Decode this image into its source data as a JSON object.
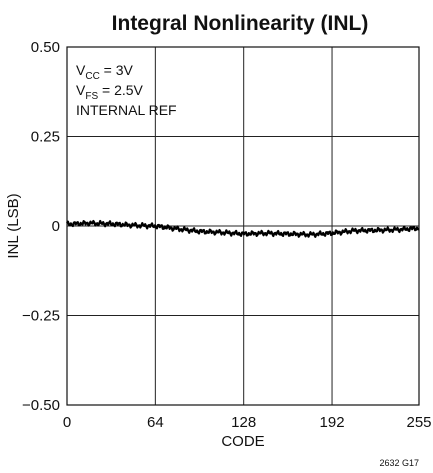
{
  "chart_data": {
    "type": "line",
    "title": "Integral Nonlinearity (INL)",
    "xlabel": "CODE",
    "ylabel": "INL (LSB)",
    "xlim": [
      0,
      255
    ],
    "ylim": [
      -0.5,
      0.5
    ],
    "x_ticks": [
      0,
      64,
      128,
      192,
      255
    ],
    "y_ticks": [
      0.5,
      0.25,
      0,
      -0.25,
      -0.5
    ],
    "x_tick_labels": [
      "0",
      "64",
      "128",
      "192",
      "255"
    ],
    "y_tick_labels": [
      "0.50",
      "0.25",
      "0",
      "−0.25",
      "−0.50"
    ],
    "grid": true,
    "annotations": {
      "line1": {
        "prefix": "V",
        "sub": "CC",
        "suffix": " = 3V"
      },
      "line2": {
        "prefix": "V",
        "sub": "FS",
        "suffix": " = 2.5V"
      },
      "line3": "INTERNAL REF"
    },
    "figure_id": "2632 G17",
    "series": [
      {
        "x": [
          0,
          16,
          32,
          48,
          64,
          80,
          96,
          112,
          128,
          144,
          160,
          176,
          192,
          208,
          224,
          240,
          255
        ],
        "y": [
          0.005,
          0.008,
          0.006,
          0.002,
          0.0,
          -0.008,
          -0.015,
          -0.018,
          -0.022,
          -0.02,
          -0.022,
          -0.024,
          -0.02,
          -0.013,
          -0.012,
          -0.01,
          -0.006
        ]
      }
    ],
    "line_color": "#000000",
    "grid_color": "#222222"
  }
}
